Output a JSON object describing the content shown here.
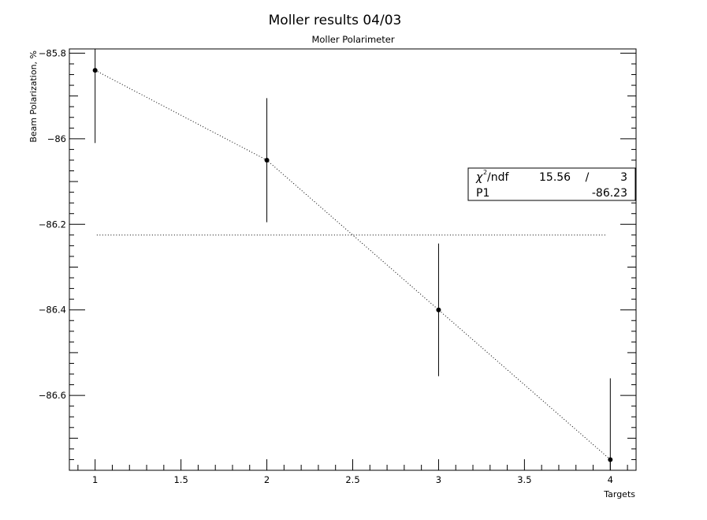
{
  "chart_data": {
    "type": "scatter",
    "title": "Moller results 04/03",
    "subtitle": "Moller Polarimeter",
    "xlabel": "Targets",
    "ylabel": "Beam Polarization, %",
    "xlim": [
      0.85,
      4.15
    ],
    "ylim": [
      -86.775,
      -85.79
    ],
    "x_ticks": [
      {
        "value": 1,
        "label": "1"
      },
      {
        "value": 1.5,
        "label": "1.5"
      },
      {
        "value": 2,
        "label": "2"
      },
      {
        "value": 2.5,
        "label": "2.5"
      },
      {
        "value": 3,
        "label": "3"
      },
      {
        "value": 3.5,
        "label": "3.5"
      },
      {
        "value": 4,
        "label": "4"
      }
    ],
    "y_ticks": [
      {
        "value": -85.8,
        "label": "-85.8"
      },
      {
        "value": -86,
        "label": "-86"
      },
      {
        "value": -86.2,
        "label": "-86.2"
      },
      {
        "value": -86.4,
        "label": "-86.4"
      },
      {
        "value": -86.6,
        "label": "-86.6"
      }
    ],
    "series": [
      {
        "points": [
          {
            "x": 1,
            "y": -85.84,
            "err": 0.17
          },
          {
            "x": 2,
            "y": -86.05,
            "err": 0.145
          },
          {
            "x": 3,
            "y": -86.4,
            "err": 0.155
          },
          {
            "x": 4,
            "y": -86.75,
            "err": 0.19
          }
        ]
      }
    ],
    "fit_line": {
      "y": -86.225,
      "x_start": 1.01,
      "x_end": 3.98
    },
    "stats_box": {
      "chi2_label": "/ndf",
      "chi2_value": "15.56",
      "chi2_sep": "/",
      "ndf_value": "3",
      "p1_label": "P1",
      "p1_value": "-86.23"
    },
    "grid": false
  }
}
